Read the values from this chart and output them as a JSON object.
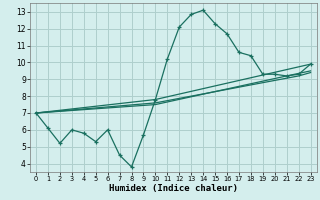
{
  "xlabel": "Humidex (Indice chaleur)",
  "bg_color": "#d4eeed",
  "grid_color": "#aecfcd",
  "line_color": "#1a7060",
  "xlim": [
    -0.5,
    23.5
  ],
  "ylim": [
    3.5,
    13.5
  ],
  "xticks": [
    0,
    1,
    2,
    3,
    4,
    5,
    6,
    7,
    8,
    9,
    10,
    11,
    12,
    13,
    14,
    15,
    16,
    17,
    18,
    19,
    20,
    21,
    22,
    23
  ],
  "yticks": [
    4,
    5,
    6,
    7,
    8,
    9,
    10,
    11,
    12,
    13
  ],
  "main_line": {
    "x": [
      0,
      1,
      2,
      3,
      4,
      5,
      6,
      7,
      8,
      9,
      10,
      11,
      12,
      13,
      14,
      15,
      16,
      17,
      18,
      19,
      20,
      21,
      22,
      23
    ],
    "y": [
      7.0,
      6.1,
      5.2,
      6.0,
      5.8,
      5.3,
      6.0,
      4.5,
      3.8,
      5.7,
      7.8,
      10.2,
      12.1,
      12.85,
      13.1,
      12.3,
      11.7,
      10.6,
      10.4,
      9.3,
      9.3,
      9.2,
      9.3,
      9.9
    ]
  },
  "extra_lines": [
    {
      "x": [
        0,
        10,
        23
      ],
      "y": [
        7.0,
        7.8,
        9.9
      ]
    },
    {
      "x": [
        0,
        10,
        22,
        23
      ],
      "y": [
        7.0,
        7.6,
        9.2,
        9.4
      ]
    },
    {
      "x": [
        0,
        10,
        21,
        23
      ],
      "y": [
        7.0,
        7.5,
        9.2,
        9.5
      ]
    }
  ]
}
